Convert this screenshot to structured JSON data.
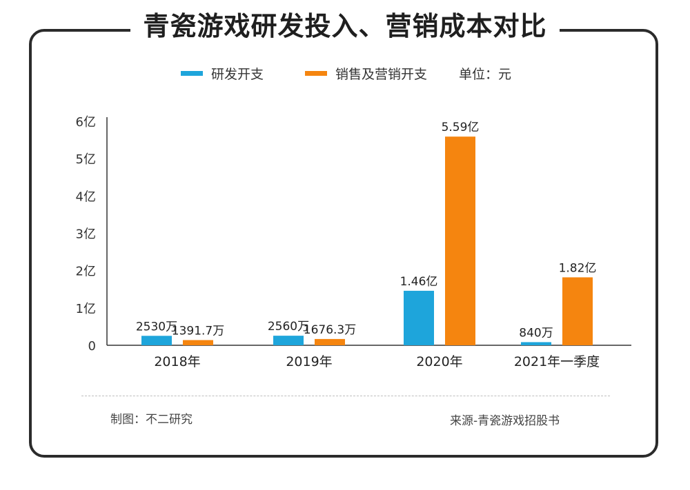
{
  "title": "青瓷游戏研发投入、营销成本对比",
  "legend": {
    "rd_label": "研发开支",
    "sales_label": "销售及营销开支",
    "unit": "单位：元"
  },
  "colors": {
    "rd": "#1ea5db",
    "sales": "#f5850f",
    "axis": "#333333"
  },
  "chart_data": {
    "type": "bar",
    "categories": [
      "2018年",
      "2019年",
      "2020年",
      "2021年一季度"
    ],
    "series": [
      {
        "name": "研发开支",
        "values": [
          0.253,
          0.256,
          1.46,
          0.084
        ],
        "labels": [
          "2530万",
          "2560万",
          "1.46亿",
          "840万"
        ]
      },
      {
        "name": "销售及营销开支",
        "values": [
          0.139,
          0.168,
          5.59,
          1.82
        ],
        "labels": [
          "1391.7万",
          "1676.3万",
          "5.59亿",
          "1.82亿"
        ]
      }
    ],
    "ylim": [
      0,
      6
    ],
    "yticks": [
      {
        "value": 0,
        "label": "0"
      },
      {
        "value": 1,
        "label": "1亿"
      },
      {
        "value": 2,
        "label": "2亿"
      },
      {
        "value": 3,
        "label": "3亿"
      },
      {
        "value": 4,
        "label": "4亿"
      },
      {
        "value": 5,
        "label": "5亿"
      },
      {
        "value": 6,
        "label": "6亿"
      }
    ],
    "ylabel": "",
    "xlabel": "",
    "grid": false
  },
  "footer": {
    "left": "制图：不二研究",
    "right": "来源-青瓷游戏招股书"
  }
}
